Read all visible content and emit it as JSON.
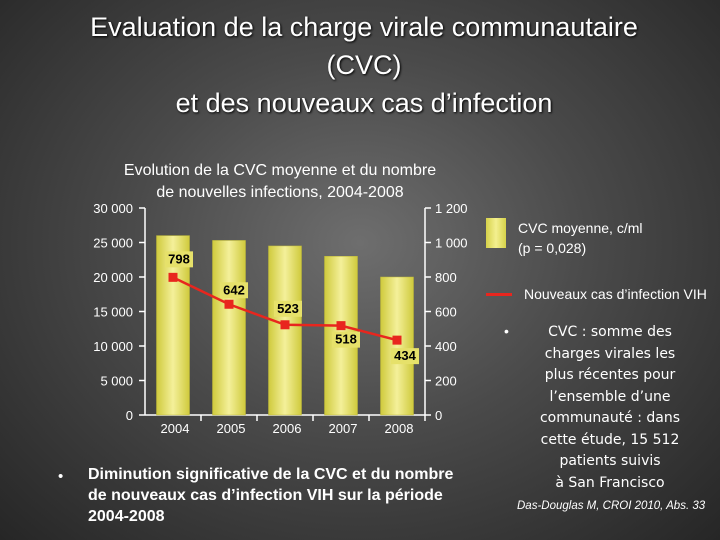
{
  "title": {
    "line1": "Evaluation de la charge virale communautaire",
    "line2": "(CVC)",
    "line3": "et des nouveaux cas d’infection"
  },
  "chart_data": {
    "type": "bar",
    "title_lines": [
      "Evolution de la CVC moyenne et du nombre",
      "de nouvelles infections, 2004-2008"
    ],
    "categories": [
      "2004",
      "2005",
      "2006",
      "2007",
      "2008"
    ],
    "series": [
      {
        "name_lines": [
          "CVC moyenne, c/ml",
          "(p = 0,028)"
        ],
        "type": "bar",
        "axis": "left",
        "values": [
          26000,
          25300,
          24500,
          23000,
          20000
        ]
      },
      {
        "name": "Nouveaux cas d’infection VIH",
        "type": "line",
        "axis": "right",
        "values": [
          798,
          642,
          523,
          518,
          434
        ],
        "data_labels": [
          "798",
          "642",
          "523",
          "518",
          "434"
        ]
      }
    ],
    "y_left": {
      "ticks": [
        "30 000",
        "25 000",
        "20 000",
        "15 000",
        "10 000",
        "5 000",
        "0"
      ],
      "min": 0,
      "max": 30000
    },
    "y_right": {
      "ticks": [
        "1 200",
        "1 000",
        "800",
        "600",
        "400",
        "200",
        "0"
      ],
      "min": 0,
      "max": 1200
    },
    "colors": {
      "bar": "#e6e16a",
      "line": "#e8261e",
      "marker": "#e8261e"
    },
    "legend_position": "right"
  },
  "note": {
    "lines": [
      "CVC : somme des",
      "charges virales les",
      "plus récentes pour",
      "l’ensemble d’une",
      "communauté : dans",
      "cette étude, 15 512",
      "patients suivis",
      "à San Francisco"
    ],
    "citation": "Das-Douglas M, CROI 2010, Abs. 33"
  },
  "conclusion": {
    "lines": [
      "Diminution significative de la CVC et du nombre",
      "de nouveaux cas d’infection VIH sur la période",
      "2004-2008"
    ]
  }
}
